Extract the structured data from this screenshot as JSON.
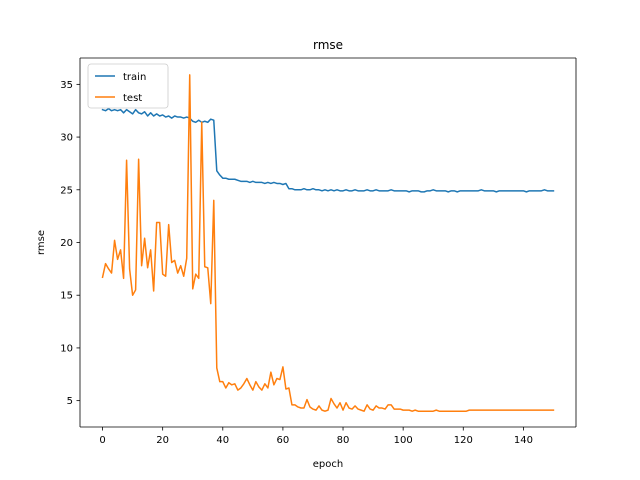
{
  "chart_data": {
    "type": "line",
    "title": "rmse",
    "xlabel": "epoch",
    "ylabel": "rmse",
    "xlim": [
      -7.5,
      157.5
    ],
    "ylim": [
      2.5,
      37.5
    ],
    "xticks": [
      0,
      20,
      40,
      60,
      80,
      100,
      120,
      140
    ],
    "yticks": [
      5,
      10,
      15,
      20,
      25,
      30,
      35
    ],
    "grid": false,
    "legend_position": "top-left",
    "series": [
      {
        "name": "train",
        "color": "#1f77b4",
        "points": [
          [
            0,
            32.6
          ],
          [
            1,
            32.5
          ],
          [
            2,
            32.7
          ],
          [
            3,
            32.5
          ],
          [
            4,
            32.6
          ],
          [
            5,
            32.5
          ],
          [
            6,
            32.6
          ],
          [
            7,
            32.3
          ],
          [
            8,
            32.6
          ],
          [
            9,
            32.4
          ],
          [
            10,
            32.2
          ],
          [
            11,
            32.6
          ],
          [
            12,
            32.3
          ],
          [
            13,
            32.2
          ],
          [
            14,
            32.4
          ],
          [
            15,
            32.0
          ],
          [
            16,
            32.3
          ],
          [
            17,
            32.0
          ],
          [
            18,
            32.2
          ],
          [
            19,
            32.0
          ],
          [
            20,
            32.1
          ],
          [
            21,
            31.9
          ],
          [
            22,
            32.0
          ],
          [
            23,
            31.8
          ],
          [
            24,
            32.0
          ],
          [
            25,
            31.9
          ],
          [
            26,
            31.9
          ],
          [
            27,
            31.8
          ],
          [
            28,
            31.9
          ],
          [
            29,
            31.8
          ],
          [
            30,
            31.5
          ],
          [
            31,
            31.4
          ],
          [
            32,
            31.6
          ],
          [
            33,
            31.4
          ],
          [
            34,
            31.5
          ],
          [
            35,
            31.4
          ],
          [
            36,
            31.7
          ],
          [
            37,
            31.6
          ],
          [
            38,
            26.8
          ],
          [
            39,
            26.4
          ],
          [
            40,
            26.1
          ],
          [
            41,
            26.1
          ],
          [
            42,
            26.0
          ],
          [
            43,
            26.0
          ],
          [
            44,
            26.0
          ],
          [
            45,
            25.9
          ],
          [
            46,
            25.8
          ],
          [
            47,
            25.8
          ],
          [
            48,
            25.8
          ],
          [
            49,
            25.7
          ],
          [
            50,
            25.8
          ],
          [
            51,
            25.7
          ],
          [
            52,
            25.7
          ],
          [
            53,
            25.7
          ],
          [
            54,
            25.6
          ],
          [
            55,
            25.7
          ],
          [
            56,
            25.6
          ],
          [
            57,
            25.7
          ],
          [
            58,
            25.6
          ],
          [
            59,
            25.6
          ],
          [
            60,
            25.5
          ],
          [
            61,
            25.6
          ],
          [
            62,
            25.1
          ],
          [
            63,
            25.1
          ],
          [
            64,
            25.0
          ],
          [
            65,
            25.0
          ],
          [
            66,
            25.0
          ],
          [
            67,
            25.1
          ],
          [
            68,
            25.0
          ],
          [
            69,
            25.0
          ],
          [
            70,
            25.1
          ],
          [
            71,
            25.0
          ],
          [
            72,
            25.0
          ],
          [
            73,
            24.9
          ],
          [
            74,
            25.0
          ],
          [
            75,
            24.9
          ],
          [
            76,
            25.0
          ],
          [
            77,
            24.9
          ],
          [
            78,
            25.0
          ],
          [
            79,
            24.9
          ],
          [
            80,
            24.9
          ],
          [
            81,
            25.0
          ],
          [
            82,
            24.9
          ],
          [
            83,
            24.9
          ],
          [
            84,
            25.0
          ],
          [
            85,
            24.9
          ],
          [
            86,
            24.9
          ],
          [
            87,
            24.9
          ],
          [
            88,
            25.0
          ],
          [
            89,
            24.9
          ],
          [
            90,
            24.9
          ],
          [
            91,
            25.0
          ],
          [
            92,
            24.9
          ],
          [
            93,
            24.9
          ],
          [
            94,
            24.9
          ],
          [
            95,
            24.9
          ],
          [
            96,
            25.0
          ],
          [
            97,
            24.9
          ],
          [
            98,
            24.9
          ],
          [
            99,
            24.9
          ],
          [
            100,
            24.9
          ],
          [
            101,
            24.9
          ],
          [
            102,
            24.8
          ],
          [
            103,
            24.9
          ],
          [
            104,
            24.9
          ],
          [
            105,
            24.9
          ],
          [
            106,
            24.8
          ],
          [
            107,
            24.8
          ],
          [
            108,
            24.9
          ],
          [
            109,
            24.9
          ],
          [
            110,
            25.0
          ],
          [
            111,
            24.9
          ],
          [
            112,
            24.9
          ],
          [
            113,
            24.9
          ],
          [
            114,
            24.9
          ],
          [
            115,
            24.8
          ],
          [
            116,
            24.9
          ],
          [
            117,
            24.9
          ],
          [
            118,
            24.8
          ],
          [
            119,
            24.9
          ],
          [
            120,
            24.9
          ],
          [
            121,
            24.9
          ],
          [
            122,
            24.9
          ],
          [
            123,
            24.9
          ],
          [
            124,
            24.9
          ],
          [
            125,
            24.9
          ],
          [
            126,
            25.0
          ],
          [
            127,
            24.9
          ],
          [
            128,
            24.9
          ],
          [
            129,
            24.9
          ],
          [
            130,
            24.9
          ],
          [
            131,
            24.8
          ],
          [
            132,
            24.9
          ],
          [
            133,
            24.9
          ],
          [
            134,
            24.9
          ],
          [
            135,
            24.9
          ],
          [
            136,
            24.9
          ],
          [
            137,
            24.9
          ],
          [
            138,
            24.9
          ],
          [
            139,
            24.9
          ],
          [
            140,
            24.9
          ],
          [
            141,
            24.8
          ],
          [
            142,
            24.9
          ],
          [
            143,
            24.9
          ],
          [
            144,
            24.9
          ],
          [
            145,
            24.9
          ],
          [
            146,
            24.9
          ],
          [
            147,
            25.0
          ],
          [
            148,
            24.9
          ],
          [
            149,
            24.9
          ],
          [
            150,
            24.9
          ]
        ]
      },
      {
        "name": "test",
        "color": "#ff7f0e",
        "points": [
          [
            0,
            16.7
          ],
          [
            1,
            18.0
          ],
          [
            2,
            17.5
          ],
          [
            3,
            17.1
          ],
          [
            4,
            20.2
          ],
          [
            5,
            18.4
          ],
          [
            6,
            19.3
          ],
          [
            7,
            16.6
          ],
          [
            8,
            27.8
          ],
          [
            9,
            17.5
          ],
          [
            10,
            15.0
          ],
          [
            11,
            15.5
          ],
          [
            12,
            27.9
          ],
          [
            13,
            17.8
          ],
          [
            14,
            20.4
          ],
          [
            15,
            17.6
          ],
          [
            16,
            19.3
          ],
          [
            17,
            15.4
          ],
          [
            18,
            21.9
          ],
          [
            19,
            21.9
          ],
          [
            20,
            17.0
          ],
          [
            21,
            16.8
          ],
          [
            22,
            21.7
          ],
          [
            23,
            18.1
          ],
          [
            24,
            18.3
          ],
          [
            25,
            17.1
          ],
          [
            26,
            17.8
          ],
          [
            27,
            16.8
          ],
          [
            28,
            18.5
          ],
          [
            29,
            35.9
          ],
          [
            30,
            15.6
          ],
          [
            31,
            17.0
          ],
          [
            32,
            16.6
          ],
          [
            33,
            31.4
          ],
          [
            34,
            17.7
          ],
          [
            35,
            17.6
          ],
          [
            36,
            14.2
          ],
          [
            37,
            24.0
          ],
          [
            38,
            8.1
          ],
          [
            39,
            6.8
          ],
          [
            40,
            6.8
          ],
          [
            41,
            6.2
          ],
          [
            42,
            6.7
          ],
          [
            43,
            6.5
          ],
          [
            44,
            6.6
          ],
          [
            45,
            6.0
          ],
          [
            46,
            6.2
          ],
          [
            47,
            6.6
          ],
          [
            48,
            7.1
          ],
          [
            49,
            6.5
          ],
          [
            50,
            6.0
          ],
          [
            51,
            6.8
          ],
          [
            52,
            6.3
          ],
          [
            53,
            6.0
          ],
          [
            54,
            6.6
          ],
          [
            55,
            6.2
          ],
          [
            56,
            7.7
          ],
          [
            57,
            6.5
          ],
          [
            58,
            7.1
          ],
          [
            59,
            7.0
          ],
          [
            60,
            8.2
          ],
          [
            61,
            6.1
          ],
          [
            62,
            6.2
          ],
          [
            63,
            4.6
          ],
          [
            64,
            4.6
          ],
          [
            65,
            4.4
          ],
          [
            66,
            4.3
          ],
          [
            67,
            4.3
          ],
          [
            68,
            5.1
          ],
          [
            69,
            4.4
          ],
          [
            70,
            4.2
          ],
          [
            71,
            4.1
          ],
          [
            72,
            4.5
          ],
          [
            73,
            4.1
          ],
          [
            74,
            4.0
          ],
          [
            75,
            4.1
          ],
          [
            76,
            5.2
          ],
          [
            77,
            4.7
          ],
          [
            78,
            4.3
          ],
          [
            79,
            4.8
          ],
          [
            80,
            4.1
          ],
          [
            81,
            4.8
          ],
          [
            82,
            4.3
          ],
          [
            83,
            4.2
          ],
          [
            84,
            4.5
          ],
          [
            85,
            4.2
          ],
          [
            86,
            4.1
          ],
          [
            87,
            4.0
          ],
          [
            88,
            4.6
          ],
          [
            89,
            4.2
          ],
          [
            90,
            4.1
          ],
          [
            91,
            4.5
          ],
          [
            92,
            4.3
          ],
          [
            93,
            4.3
          ],
          [
            94,
            4.2
          ],
          [
            95,
            4.6
          ],
          [
            96,
            4.6
          ],
          [
            97,
            4.2
          ],
          [
            98,
            4.2
          ],
          [
            99,
            4.2
          ],
          [
            100,
            4.1
          ],
          [
            101,
            4.1
          ],
          [
            102,
            4.1
          ],
          [
            103,
            4.0
          ],
          [
            104,
            4.1
          ],
          [
            105,
            4.0
          ],
          [
            106,
            4.0
          ],
          [
            107,
            4.0
          ],
          [
            108,
            4.0
          ],
          [
            109,
            4.0
          ],
          [
            110,
            4.0
          ],
          [
            111,
            4.1
          ],
          [
            112,
            4.0
          ],
          [
            113,
            4.0
          ],
          [
            114,
            4.0
          ],
          [
            115,
            4.0
          ],
          [
            116,
            4.0
          ],
          [
            117,
            4.0
          ],
          [
            118,
            4.0
          ],
          [
            119,
            4.0
          ],
          [
            120,
            4.0
          ],
          [
            121,
            4.0
          ],
          [
            122,
            4.1
          ],
          [
            123,
            4.1
          ],
          [
            124,
            4.1
          ],
          [
            125,
            4.1
          ],
          [
            126,
            4.1
          ],
          [
            127,
            4.1
          ],
          [
            128,
            4.1
          ],
          [
            129,
            4.1
          ],
          [
            130,
            4.1
          ],
          [
            131,
            4.1
          ],
          [
            132,
            4.1
          ],
          [
            133,
            4.1
          ],
          [
            134,
            4.1
          ],
          [
            135,
            4.1
          ],
          [
            136,
            4.1
          ],
          [
            137,
            4.1
          ],
          [
            138,
            4.1
          ],
          [
            139,
            4.1
          ],
          [
            140,
            4.1
          ],
          [
            141,
            4.1
          ],
          [
            142,
            4.1
          ],
          [
            143,
            4.1
          ],
          [
            144,
            4.1
          ],
          [
            145,
            4.1
          ],
          [
            146,
            4.1
          ],
          [
            147,
            4.1
          ],
          [
            148,
            4.1
          ],
          [
            149,
            4.1
          ],
          [
            150,
            4.1
          ]
        ]
      }
    ]
  }
}
